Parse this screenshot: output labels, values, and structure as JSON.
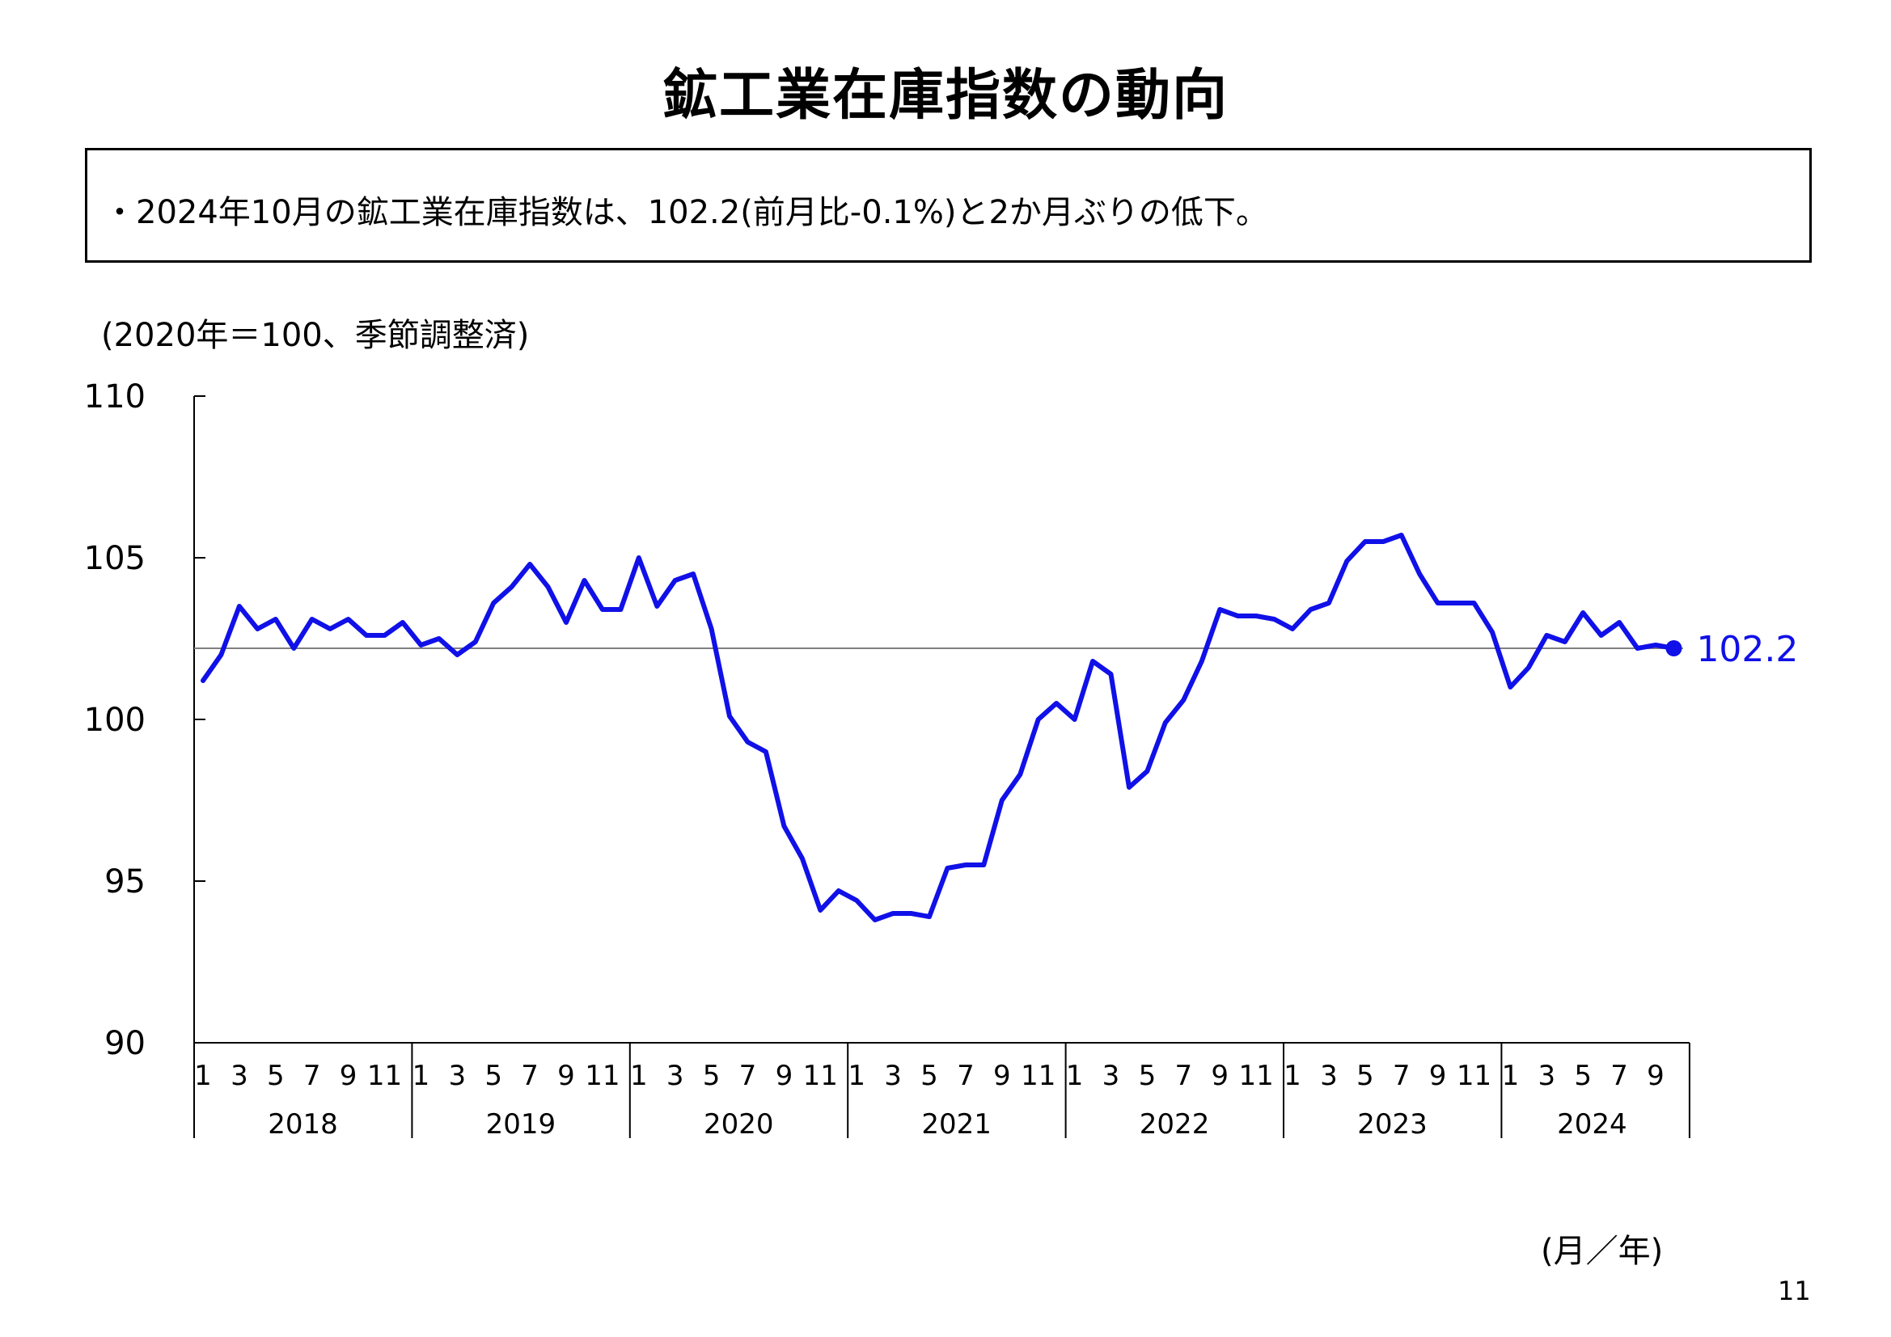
{
  "title": "鉱工業在庫指数の動向",
  "summary": "・2024年10月の鉱工業在庫指数は、102.2(前月比-0.1%)と2か月ぶりの低下。",
  "unit_note": "(2020年＝100、季節調整済)",
  "x_unit": "(月／年)",
  "page_number": "11",
  "colors": {
    "line": "#1010e8",
    "reference": "#808080",
    "axis": "#000000"
  },
  "chart_data": {
    "type": "line",
    "ylim": [
      90,
      110
    ],
    "y_ticks": [
      90,
      95,
      100,
      105,
      110
    ],
    "grid": false,
    "years": [
      "2018",
      "2019",
      "2020",
      "2021",
      "2022",
      "2023",
      "2024"
    ],
    "month_ticks": [
      "1",
      "3",
      "5",
      "7",
      "9",
      "11"
    ],
    "month_ticks_last": [
      "1",
      "3",
      "5",
      "7",
      "9"
    ],
    "reference_value": 102.2,
    "last_label": "102.2",
    "series": [
      {
        "values": [
          101.2,
          102.0,
          103.5,
          102.8,
          103.1,
          102.2,
          103.1,
          102.8,
          103.1,
          102.6,
          102.6,
          103.0,
          102.3,
          102.5,
          102.0,
          102.4,
          103.6,
          104.1,
          104.8,
          104.1,
          103.0,
          104.3,
          103.4,
          103.4,
          105.0,
          103.5,
          104.3,
          104.5,
          102.8,
          100.1,
          99.3,
          99.0,
          96.7,
          95.7,
          94.1,
          94.7,
          94.4,
          93.8,
          94.0,
          94.0,
          93.9,
          95.4,
          95.5,
          95.5,
          97.5,
          98.3,
          100.0,
          100.5,
          100.0,
          101.8,
          101.4,
          97.9,
          98.4,
          99.9,
          100.6,
          101.8,
          103.4,
          103.2,
          103.2,
          103.1,
          102.8,
          103.4,
          103.6,
          104.9,
          105.5,
          105.5,
          105.7,
          104.5,
          103.6,
          103.6,
          103.6,
          102.7,
          101.0,
          101.6,
          102.6,
          102.4,
          103.3,
          102.6,
          103.0,
          102.2,
          102.3,
          102.2
        ]
      }
    ]
  }
}
